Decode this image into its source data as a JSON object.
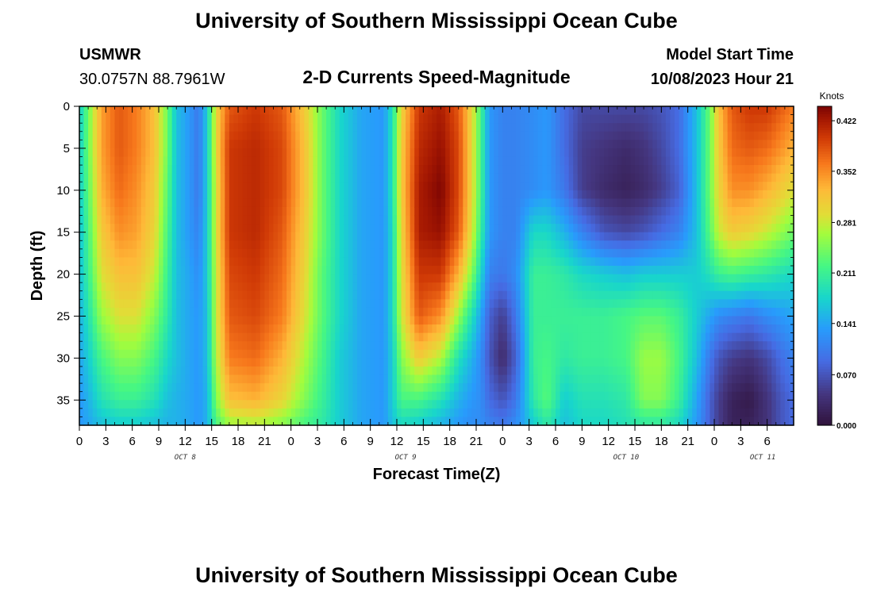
{
  "header": {
    "title": "University of Southern Mississippi Ocean Cube",
    "station": "USMWR",
    "coords": "30.0757N  88.7961W",
    "subtitle": "2-D Currents Speed-Magnitude",
    "model_start_label": "Model Start Time",
    "model_start_value": "10/08/2023 Hour 21"
  },
  "footer": {
    "title": "University of Southern Mississippi Ocean Cube"
  },
  "colors": {
    "background": "#ffffff",
    "axis": "#000000"
  },
  "chart_data": {
    "type": "heatmap",
    "title": "2-D Currents Speed-Magnitude",
    "xlabel": "Forecast Time(Z)",
    "ylabel": "Depth (ft)",
    "units": "Knots",
    "x_range_hours": [
      0,
      81
    ],
    "y_range_ft": [
      0,
      38
    ],
    "x_ticks": [
      {
        "hour": 0,
        "label": "0"
      },
      {
        "hour": 3,
        "label": "3"
      },
      {
        "hour": 6,
        "label": "6"
      },
      {
        "hour": 9,
        "label": "9"
      },
      {
        "hour": 12,
        "label": "12"
      },
      {
        "hour": 15,
        "label": "15"
      },
      {
        "hour": 18,
        "label": "18"
      },
      {
        "hour": 21,
        "label": "21"
      },
      {
        "hour": 24,
        "label": "0"
      },
      {
        "hour": 27,
        "label": "3"
      },
      {
        "hour": 30,
        "label": "6"
      },
      {
        "hour": 33,
        "label": "9"
      },
      {
        "hour": 36,
        "label": "12"
      },
      {
        "hour": 39,
        "label": "15"
      },
      {
        "hour": 42,
        "label": "18"
      },
      {
        "hour": 45,
        "label": "21"
      },
      {
        "hour": 48,
        "label": "0"
      },
      {
        "hour": 51,
        "label": "3"
      },
      {
        "hour": 54,
        "label": "6"
      },
      {
        "hour": 57,
        "label": "9"
      },
      {
        "hour": 60,
        "label": "12"
      },
      {
        "hour": 63,
        "label": "15"
      },
      {
        "hour": 66,
        "label": "18"
      },
      {
        "hour": 69,
        "label": "21"
      },
      {
        "hour": 72,
        "label": "0"
      },
      {
        "hour": 75,
        "label": "3"
      },
      {
        "hour": 78,
        "label": "6"
      }
    ],
    "day_labels": [
      {
        "hour": 12,
        "label": "OCT 8"
      },
      {
        "hour": 37,
        "label": "OCT 9"
      },
      {
        "hour": 62,
        "label": "OCT 10"
      },
      {
        "hour": 77.5,
        "label": "OCT 11"
      }
    ],
    "y_ticks": [
      0,
      5,
      10,
      15,
      20,
      25,
      30,
      35
    ],
    "colorbar": {
      "label": "Knots",
      "min": 0.0,
      "max": 0.442,
      "ticks": [
        "0.000",
        "0.070",
        "0.141",
        "0.211",
        "0.281",
        "0.352",
        "0.422"
      ]
    },
    "profile_depths_ft": [
      0,
      5,
      10,
      15,
      20,
      25,
      30,
      35,
      38
    ],
    "profiles": [
      {
        "hour": 0,
        "speeds": [
          0.17,
          0.17,
          0.17,
          0.16,
          0.16,
          0.15,
          0.14,
          0.13,
          0.13
        ]
      },
      {
        "hour": 1,
        "speeds": [
          0.24,
          0.24,
          0.23,
          0.22,
          0.21,
          0.19,
          0.17,
          0.15,
          0.14
        ]
      },
      {
        "hour": 2.5,
        "speeds": [
          0.34,
          0.34,
          0.33,
          0.31,
          0.29,
          0.26,
          0.22,
          0.19,
          0.16
        ]
      },
      {
        "hour": 4.5,
        "speeds": [
          0.38,
          0.38,
          0.37,
          0.35,
          0.32,
          0.29,
          0.25,
          0.21,
          0.17
        ]
      },
      {
        "hour": 6.5,
        "speeds": [
          0.36,
          0.36,
          0.35,
          0.34,
          0.32,
          0.29,
          0.25,
          0.21,
          0.17
        ]
      },
      {
        "hour": 8.5,
        "speeds": [
          0.32,
          0.32,
          0.31,
          0.3,
          0.28,
          0.25,
          0.22,
          0.19,
          0.16
        ]
      },
      {
        "hour": 10,
        "speeds": [
          0.24,
          0.24,
          0.23,
          0.22,
          0.21,
          0.2,
          0.18,
          0.16,
          0.15
        ]
      },
      {
        "hour": 11,
        "speeds": [
          0.16,
          0.16,
          0.16,
          0.16,
          0.16,
          0.16,
          0.16,
          0.15,
          0.15
        ]
      },
      {
        "hour": 12.5,
        "speeds": [
          0.13,
          0.13,
          0.13,
          0.13,
          0.14,
          0.14,
          0.14,
          0.14,
          0.14
        ]
      },
      {
        "hour": 13.5,
        "speeds": [
          0.1,
          0.1,
          0.1,
          0.11,
          0.12,
          0.13,
          0.13,
          0.13,
          0.13
        ]
      },
      {
        "hour": 14.5,
        "speeds": [
          0.17,
          0.17,
          0.17,
          0.17,
          0.17,
          0.16,
          0.16,
          0.15,
          0.15
        ]
      },
      {
        "hour": 15.5,
        "speeds": [
          0.3,
          0.3,
          0.29,
          0.29,
          0.28,
          0.28,
          0.27,
          0.25,
          0.22
        ]
      },
      {
        "hour": 17,
        "speeds": [
          0.38,
          0.4,
          0.4,
          0.4,
          0.39,
          0.38,
          0.36,
          0.32,
          0.26
        ]
      },
      {
        "hour": 20,
        "speeds": [
          0.4,
          0.41,
          0.41,
          0.41,
          0.4,
          0.39,
          0.37,
          0.33,
          0.27
        ]
      },
      {
        "hour": 23,
        "speeds": [
          0.38,
          0.39,
          0.39,
          0.38,
          0.37,
          0.36,
          0.33,
          0.3,
          0.25
        ]
      },
      {
        "hour": 25.5,
        "speeds": [
          0.31,
          0.32,
          0.32,
          0.31,
          0.3,
          0.29,
          0.27,
          0.25,
          0.22
        ]
      },
      {
        "hour": 27.5,
        "speeds": [
          0.24,
          0.24,
          0.24,
          0.24,
          0.23,
          0.23,
          0.22,
          0.21,
          0.2
        ]
      },
      {
        "hour": 29.5,
        "speeds": [
          0.18,
          0.18,
          0.18,
          0.18,
          0.18,
          0.18,
          0.17,
          0.17,
          0.17
        ]
      },
      {
        "hour": 32,
        "speeds": [
          0.14,
          0.14,
          0.14,
          0.14,
          0.14,
          0.14,
          0.14,
          0.14,
          0.14
        ]
      },
      {
        "hour": 34.5,
        "speeds": [
          0.13,
          0.13,
          0.13,
          0.13,
          0.13,
          0.13,
          0.13,
          0.13,
          0.13
        ]
      },
      {
        "hour": 35.5,
        "speeds": [
          0.19,
          0.19,
          0.19,
          0.18,
          0.18,
          0.18,
          0.17,
          0.17,
          0.16
        ]
      },
      {
        "hour": 36.5,
        "speeds": [
          0.3,
          0.31,
          0.31,
          0.3,
          0.29,
          0.28,
          0.25,
          0.22,
          0.18
        ]
      },
      {
        "hour": 38.5,
        "speeds": [
          0.4,
          0.41,
          0.42,
          0.42,
          0.4,
          0.38,
          0.31,
          0.22,
          0.17
        ]
      },
      {
        "hour": 41,
        "speeds": [
          0.42,
          0.43,
          0.44,
          0.43,
          0.4,
          0.35,
          0.27,
          0.19,
          0.15
        ]
      },
      {
        "hour": 43,
        "speeds": [
          0.38,
          0.39,
          0.39,
          0.38,
          0.33,
          0.26,
          0.19,
          0.15,
          0.13
        ]
      },
      {
        "hour": 44.5,
        "speeds": [
          0.3,
          0.3,
          0.3,
          0.29,
          0.25,
          0.19,
          0.15,
          0.13,
          0.12
        ]
      },
      {
        "hour": 45.5,
        "speeds": [
          0.22,
          0.22,
          0.22,
          0.21,
          0.18,
          0.14,
          0.12,
          0.12,
          0.12
        ]
      },
      {
        "hour": 46.5,
        "speeds": [
          0.13,
          0.13,
          0.13,
          0.13,
          0.11,
          0.08,
          0.07,
          0.09,
          0.11
        ]
      },
      {
        "hour": 48,
        "speeds": [
          0.11,
          0.11,
          0.11,
          0.11,
          0.1,
          0.05,
          0.03,
          0.07,
          0.1
        ]
      },
      {
        "hour": 49.5,
        "speeds": [
          0.11,
          0.11,
          0.11,
          0.11,
          0.12,
          0.1,
          0.08,
          0.1,
          0.12
        ]
      },
      {
        "hour": 51.5,
        "speeds": [
          0.12,
          0.12,
          0.12,
          0.18,
          0.21,
          0.21,
          0.21,
          0.2,
          0.17
        ]
      },
      {
        "hour": 53,
        "speeds": [
          0.13,
          0.13,
          0.13,
          0.18,
          0.21,
          0.21,
          0.22,
          0.23,
          0.2
        ]
      },
      {
        "hour": 55,
        "speeds": [
          0.09,
          0.09,
          0.1,
          0.15,
          0.2,
          0.21,
          0.2,
          0.17,
          0.16
        ]
      },
      {
        "hour": 57,
        "speeds": [
          0.06,
          0.05,
          0.05,
          0.11,
          0.18,
          0.21,
          0.21,
          0.19,
          0.18
        ]
      },
      {
        "hour": 59.5,
        "speeds": [
          0.06,
          0.04,
          0.03,
          0.07,
          0.17,
          0.21,
          0.21,
          0.19,
          0.18
        ]
      },
      {
        "hour": 62,
        "speeds": [
          0.06,
          0.03,
          0.02,
          0.06,
          0.16,
          0.22,
          0.22,
          0.2,
          0.19
        ]
      },
      {
        "hour": 64,
        "speeds": [
          0.06,
          0.04,
          0.03,
          0.07,
          0.17,
          0.23,
          0.26,
          0.25,
          0.2
        ]
      },
      {
        "hour": 66,
        "speeds": [
          0.07,
          0.06,
          0.05,
          0.09,
          0.17,
          0.23,
          0.26,
          0.25,
          0.2
        ]
      },
      {
        "hour": 68,
        "speeds": [
          0.09,
          0.09,
          0.08,
          0.11,
          0.17,
          0.21,
          0.22,
          0.21,
          0.18
        ]
      },
      {
        "hour": 70,
        "speeds": [
          0.16,
          0.16,
          0.16,
          0.16,
          0.17,
          0.17,
          0.16,
          0.14,
          0.13
        ]
      },
      {
        "hour": 71.5,
        "speeds": [
          0.24,
          0.24,
          0.24,
          0.23,
          0.19,
          0.14,
          0.1,
          0.08,
          0.08
        ]
      },
      {
        "hour": 72.5,
        "speeds": [
          0.32,
          0.31,
          0.3,
          0.28,
          0.21,
          0.12,
          0.07,
          0.05,
          0.05
        ]
      },
      {
        "hour": 74,
        "speeds": [
          0.38,
          0.37,
          0.35,
          0.31,
          0.22,
          0.11,
          0.05,
          0.02,
          0.02
        ]
      },
      {
        "hour": 76,
        "speeds": [
          0.4,
          0.38,
          0.35,
          0.3,
          0.21,
          0.1,
          0.04,
          0.01,
          0.02
        ]
      },
      {
        "hour": 78,
        "speeds": [
          0.4,
          0.37,
          0.33,
          0.28,
          0.2,
          0.12,
          0.06,
          0.04,
          0.04
        ]
      },
      {
        "hour": 79.5,
        "speeds": [
          0.38,
          0.35,
          0.31,
          0.26,
          0.19,
          0.13,
          0.09,
          0.07,
          0.07
        ]
      },
      {
        "hour": 81,
        "speeds": [
          0.36,
          0.33,
          0.29,
          0.24,
          0.18,
          0.14,
          0.11,
          0.09,
          0.09
        ]
      }
    ]
  }
}
